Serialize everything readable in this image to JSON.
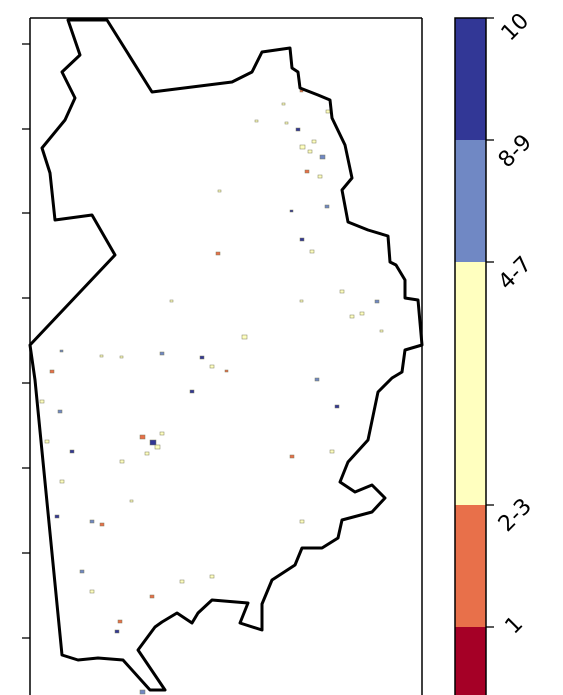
{
  "map": {
    "colorbar": {
      "classes": [
        {
          "label": "1",
          "color": "#a50026"
        },
        {
          "label": "2-3",
          "color": "#e8704a"
        },
        {
          "label": "4-7",
          "color": "#ffffbf"
        },
        {
          "label": "8-9",
          "color": "#7088c4"
        },
        {
          "label": "10",
          "color": "#323796"
        }
      ]
    }
  }
}
